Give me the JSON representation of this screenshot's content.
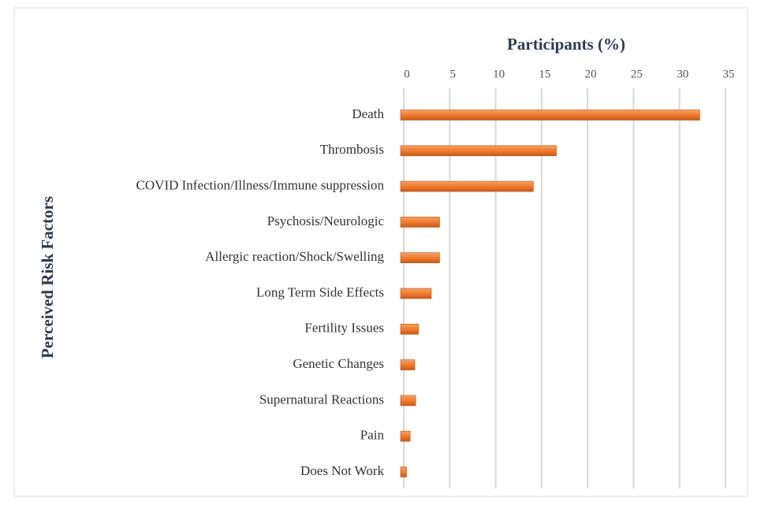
{
  "chart_data": {
    "type": "bar",
    "orientation": "horizontal",
    "x_axis_label": "Participants (%)",
    "y_axis_label": "Perceived Risk Factors",
    "categories": [
      "Death",
      "Thrombosis",
      "COVID Infection/Illness/Immune suppression",
      "Psychosis/Neurologic",
      "Allergic reaction/Shock/Swelling",
      "Long Term Side Effects",
      "Fertility Issues",
      "Genetic Changes",
      "Supernatural Reactions",
      "Pain",
      "Does Not Work"
    ],
    "values": [
      32.2,
      16.6,
      14.1,
      3.9,
      3.9,
      3.0,
      1.6,
      1.2,
      1.3,
      0.7,
      0.3
    ],
    "color": "#f07c30",
    "xlim": [
      0,
      35
    ],
    "xticks": [
      0,
      5,
      10,
      15,
      20,
      25,
      30,
      35
    ],
    "grid": true
  }
}
